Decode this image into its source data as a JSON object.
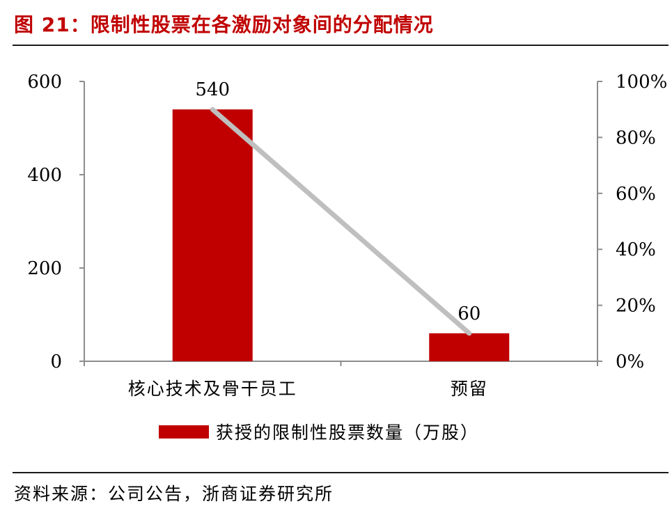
{
  "figure": {
    "title": "图 21：限制性股票在各激励对象间的分配情况",
    "source": "资料来源：公司公告，浙商证券研究所"
  },
  "colors": {
    "title": "#c00000",
    "bar": "#c00000",
    "line": "#bfbfbf",
    "axis": "#8c8c8c"
  },
  "chart_data": {
    "type": "bar",
    "categories": [
      "核心技术及骨干员工",
      "预留"
    ],
    "series": [
      {
        "name": "获授的限制性股票数量（万股）",
        "type": "bar",
        "axis": "left",
        "values": [
          540,
          60
        ],
        "data_labels": [
          "540",
          "60"
        ]
      },
      {
        "type": "line",
        "axis": "right",
        "values": [
          90,
          10
        ]
      }
    ],
    "y_left": {
      "min": 0,
      "max": 600,
      "ticks": [
        0,
        200,
        400,
        600
      ],
      "tick_labels": [
        "0",
        "200",
        "400",
        "600"
      ]
    },
    "y_right": {
      "min": 0,
      "max": 100,
      "ticks": [
        0,
        20,
        40,
        60,
        80,
        100
      ],
      "tick_labels": [
        "0%",
        "20%",
        "40%",
        "60%",
        "80%",
        "100%"
      ]
    },
    "grid": false,
    "legend": "bottom-center"
  }
}
